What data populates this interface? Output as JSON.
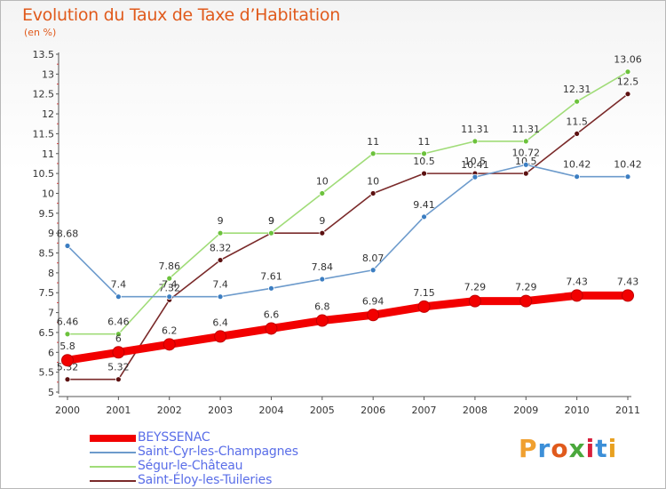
{
  "title": "Evolution du Taux de Taxe d’Habitation",
  "unit": "(en %)",
  "logo": {
    "text": "Proxiti",
    "colors": [
      "#f0a030",
      "#3c8fd8",
      "#e05a1c",
      "#4aa83c",
      "#d8203c",
      "#3c8fd8",
      "#e8a020"
    ]
  },
  "chart_data": {
    "type": "line",
    "x": [
      "2000",
      "2001",
      "2002",
      "2003",
      "2004",
      "2005",
      "2006",
      "2007",
      "2008",
      "2009",
      "2010",
      "2011"
    ],
    "ylim": [
      5,
      13.5
    ],
    "yticks": [
      "5",
      "5.5",
      "6",
      "6.5",
      "7",
      "7.5",
      "8",
      "8.5",
      "9",
      "9.5",
      "10",
      "10.5",
      "11",
      "11.5",
      "12",
      "12.5",
      "13",
      "13.5"
    ],
    "grid": false,
    "legend": "bottom",
    "series": [
      {
        "name": "BEYSSENAC",
        "color": "#f20000",
        "values": [
          5.8,
          6,
          6.2,
          6.4,
          6.6,
          6.8,
          6.94,
          7.15,
          7.29,
          7.29,
          7.43,
          7.43
        ],
        "labels": [
          "5.8",
          "6",
          "6.2",
          "6.4",
          "6.6",
          "6.8",
          "6.94",
          "7.15",
          "7.29",
          "7.29",
          "7.43",
          "7.43"
        ]
      },
      {
        "name": "Saint-Cyr-les-Champagnes",
        "color": "#6d9bcc",
        "marker": "#3c7ec2",
        "values": [
          8.68,
          7.4,
          7.4,
          7.4,
          7.61,
          7.84,
          8.07,
          9.41,
          10.41,
          10.72,
          10.42,
          10.42
        ],
        "labels": [
          "8.68",
          "7.4",
          "7.4",
          "7.4",
          "7.61",
          "7.84",
          "8.07",
          "9.41",
          "10.41",
          "10.72",
          "10.42",
          "10.42"
        ]
      },
      {
        "name": "Ségur-le-Château",
        "color": "#a0dc78",
        "marker": "#6cc23c",
        "values": [
          6.46,
          6.46,
          7.86,
          9,
          9,
          10,
          11,
          11,
          11.31,
          11.31,
          12.31,
          13.06
        ],
        "labels": [
          "6.46",
          "6.46",
          "7.86",
          "9",
          "9",
          "10",
          "11",
          "11",
          "11.31",
          "11.31",
          "12.31",
          "13.06"
        ]
      },
      {
        "name": "Saint-Éloy-les-Tuileries",
        "color": "#7a2a2a",
        "marker": "#5c1010",
        "values": [
          5.32,
          5.32,
          7.32,
          8.32,
          9,
          9,
          10,
          10.5,
          10.5,
          10.5,
          11.5,
          12.5
        ],
        "labels": [
          "5.32",
          "5.32",
          "7.32",
          "8.32",
          "9",
          "9",
          "10",
          "10.5",
          "10.5",
          "10.5",
          "11.5",
          "12.5"
        ]
      }
    ]
  }
}
